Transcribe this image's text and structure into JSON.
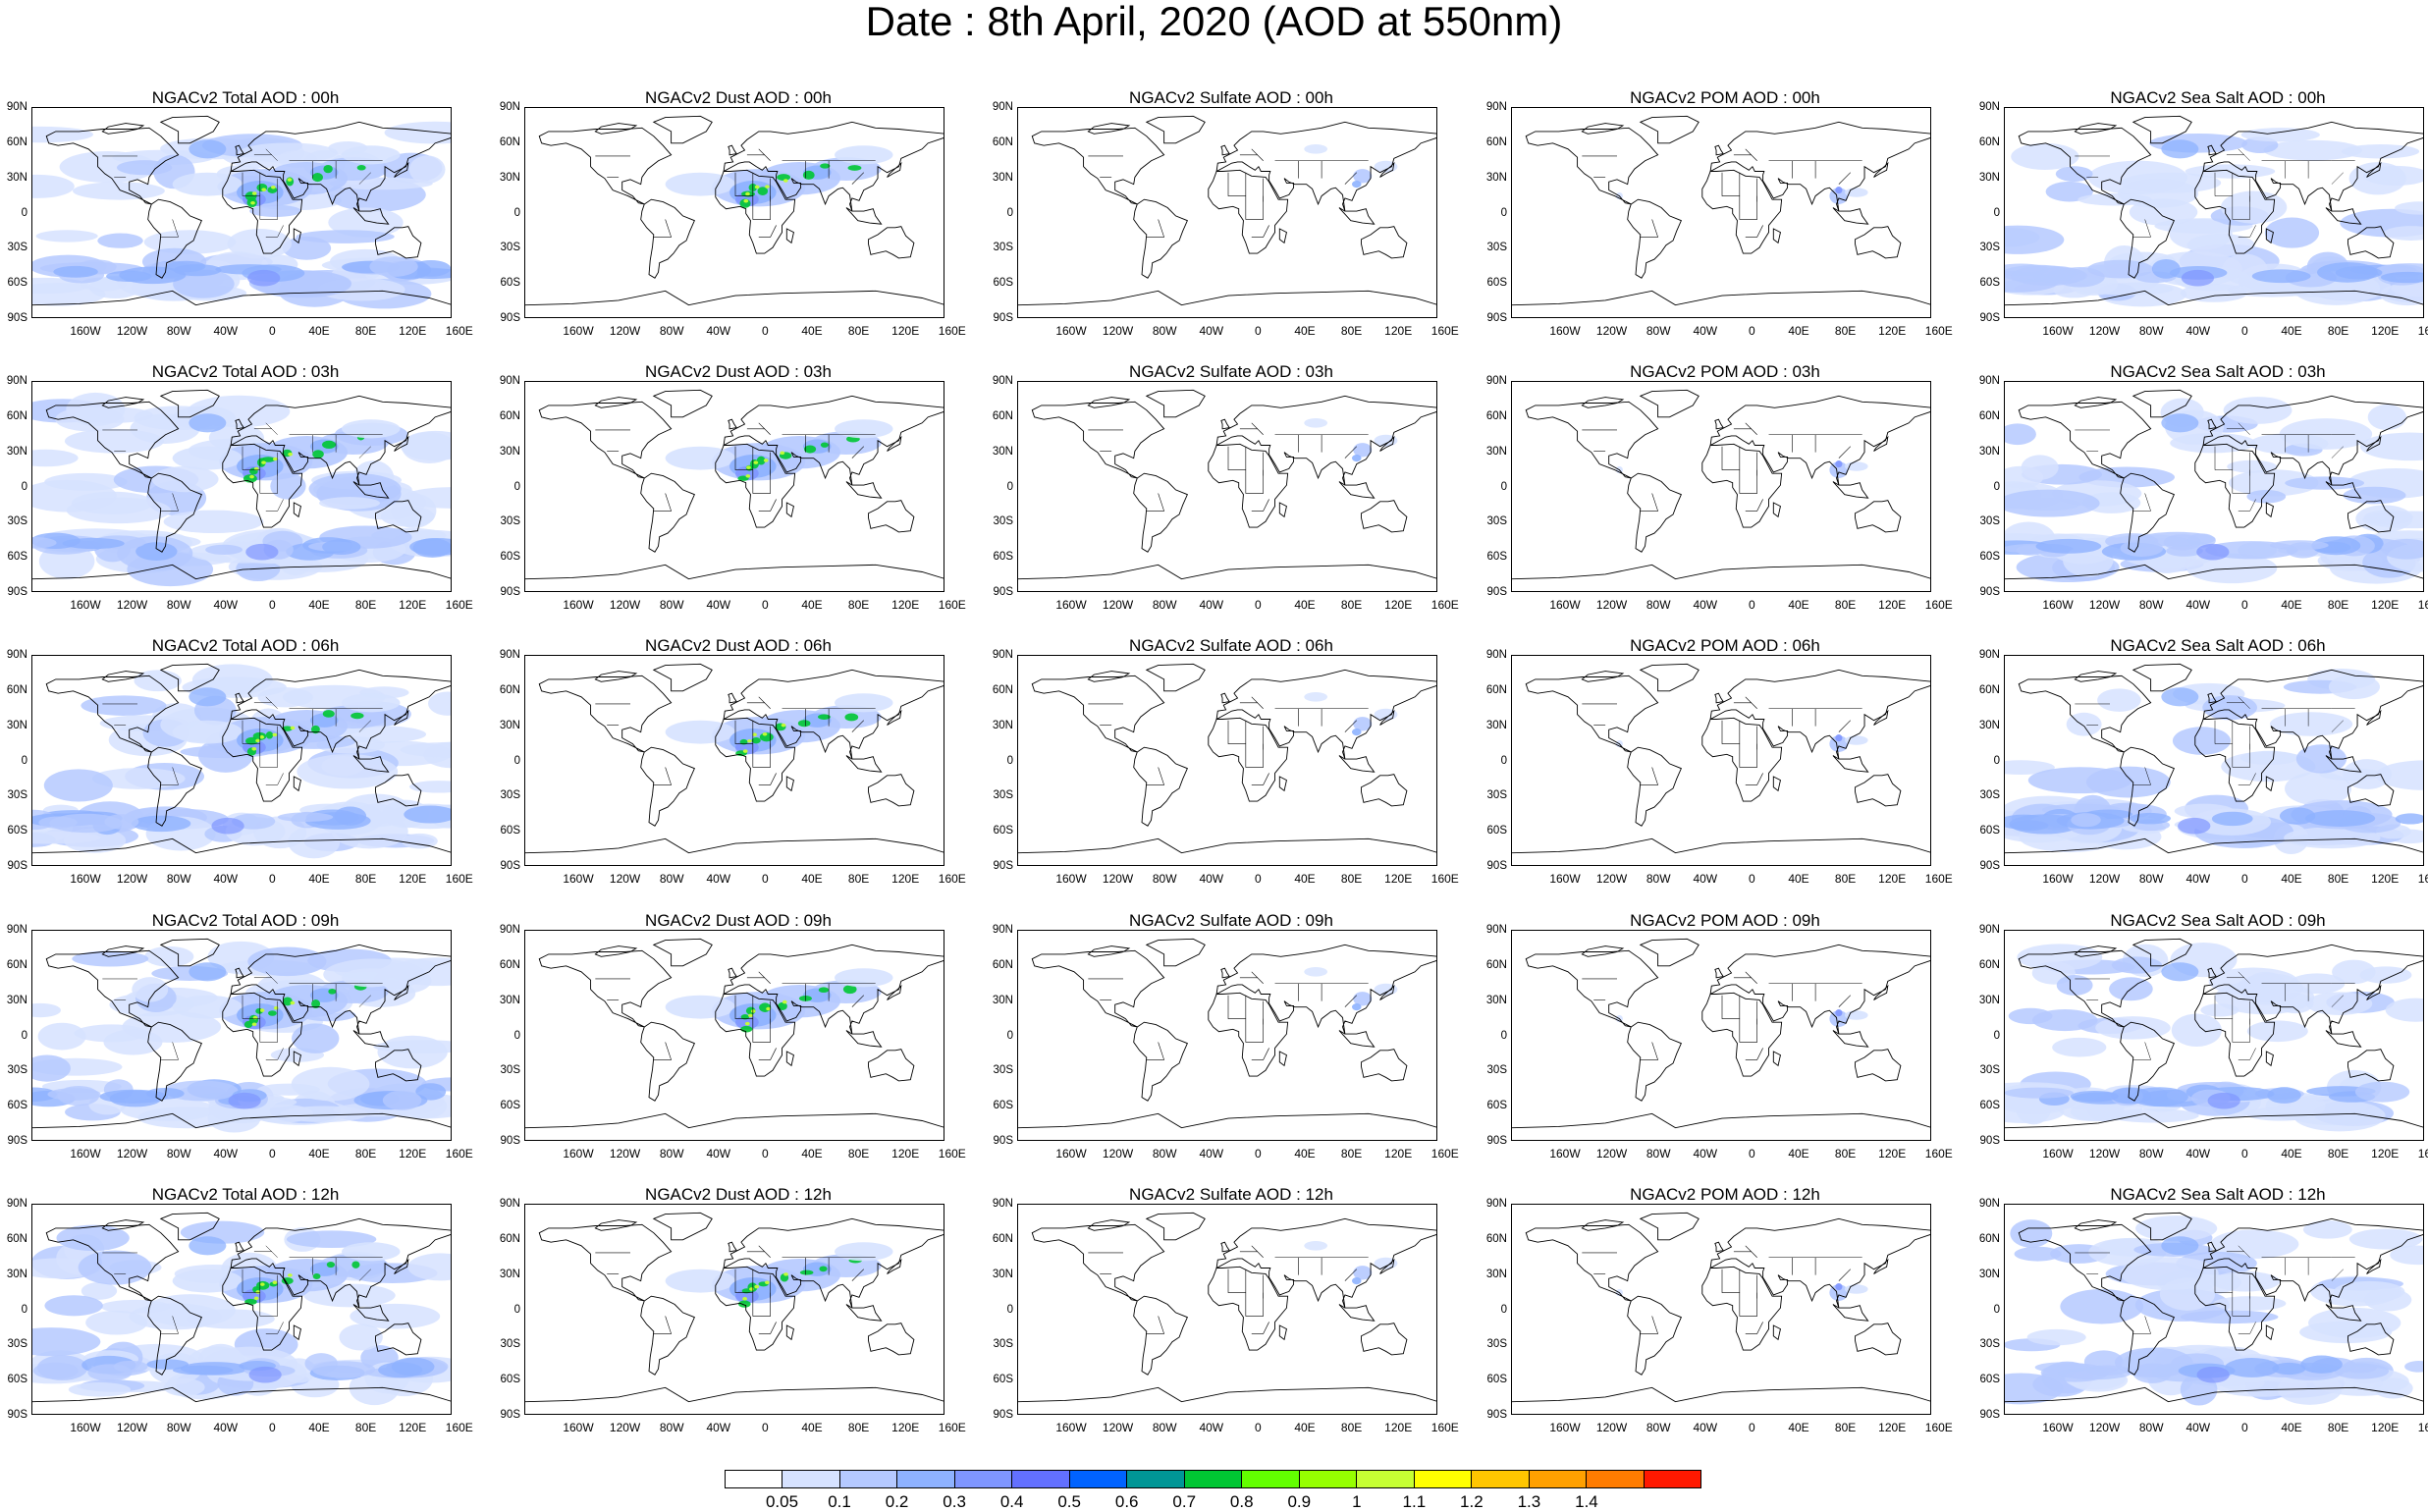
{
  "title": "Date : 8th April, 2020 (AOD at 550nm)",
  "latitude_ticks": [
    "90N",
    "60N",
    "30N",
    "0",
    "30S",
    "60S",
    "90S"
  ],
  "longitude_ticks": [
    "160W",
    "120W",
    "80W",
    "40W",
    "0",
    "40E",
    "80E",
    "120E",
    "160E"
  ],
  "panels": [
    {
      "title": "NGACv2 Total AOD : 00h",
      "type": "total"
    },
    {
      "title": "NGACv2 Dust AOD : 00h",
      "type": "dust"
    },
    {
      "title": "NGACv2 Sulfate AOD : 00h",
      "type": "sulfate"
    },
    {
      "title": "NGACv2 POM AOD : 00h",
      "type": "pom"
    },
    {
      "title": "NGACv2 Sea Salt AOD : 00h",
      "type": "seasalt"
    },
    {
      "title": "NGACv2 Total AOD : 03h",
      "type": "total"
    },
    {
      "title": "NGACv2 Dust AOD : 03h",
      "type": "dust"
    },
    {
      "title": "NGACv2 Sulfate AOD : 03h",
      "type": "sulfate"
    },
    {
      "title": "NGACv2 POM AOD : 03h",
      "type": "pom"
    },
    {
      "title": "NGACv2 Sea Salt AOD : 03h",
      "type": "seasalt"
    },
    {
      "title": "NGACv2 Total AOD : 06h",
      "type": "total"
    },
    {
      "title": "NGACv2 Dust AOD : 06h",
      "type": "dust"
    },
    {
      "title": "NGACv2 Sulfate AOD : 06h",
      "type": "sulfate"
    },
    {
      "title": "NGACv2 POM AOD : 06h",
      "type": "pom"
    },
    {
      "title": "NGACv2 Sea Salt AOD : 06h",
      "type": "seasalt"
    },
    {
      "title": "NGACv2 Total AOD : 09h",
      "type": "total"
    },
    {
      "title": "NGACv2 Dust AOD : 09h",
      "type": "dust"
    },
    {
      "title": "NGACv2 Sulfate AOD : 09h",
      "type": "sulfate"
    },
    {
      "title": "NGACv2 POM AOD : 09h",
      "type": "pom"
    },
    {
      "title": "NGACv2 Sea Salt  AOD : 09h",
      "type": "seasalt"
    },
    {
      "title": "NGACv2 Total AOD  : 12h",
      "type": "total"
    },
    {
      "title": "NGACv2 Dust AOD : 12h",
      "type": "dust"
    },
    {
      "title": "NGACv2 Sulfate AOD : 12h",
      "type": "sulfate"
    },
    {
      "title": "NGACv2 POM  AOD : 12h",
      "type": "pom"
    },
    {
      "title": "NGACv2 Sea Salt  AOD : 12h",
      "type": "seasalt"
    }
  ],
  "colorbar": {
    "labels": [
      "0.05",
      "0.1",
      "0.2",
      "0.3",
      "0.4",
      "0.5",
      "0.6",
      "0.7",
      "0.8",
      "0.9",
      "1",
      "1.1",
      "1.2",
      "1.3",
      "1.4"
    ],
    "colors": [
      "#ffffff",
      "#d6e2ff",
      "#b5c9ff",
      "#8eb2ff",
      "#7f96ff",
      "#6370ff",
      "#0063ff",
      "#009696",
      "#00c633",
      "#63ff00",
      "#96ff00",
      "#c6ff33",
      "#ffff00",
      "#ffc600",
      "#ffa000",
      "#ff7c00",
      "#ff1900"
    ]
  }
}
